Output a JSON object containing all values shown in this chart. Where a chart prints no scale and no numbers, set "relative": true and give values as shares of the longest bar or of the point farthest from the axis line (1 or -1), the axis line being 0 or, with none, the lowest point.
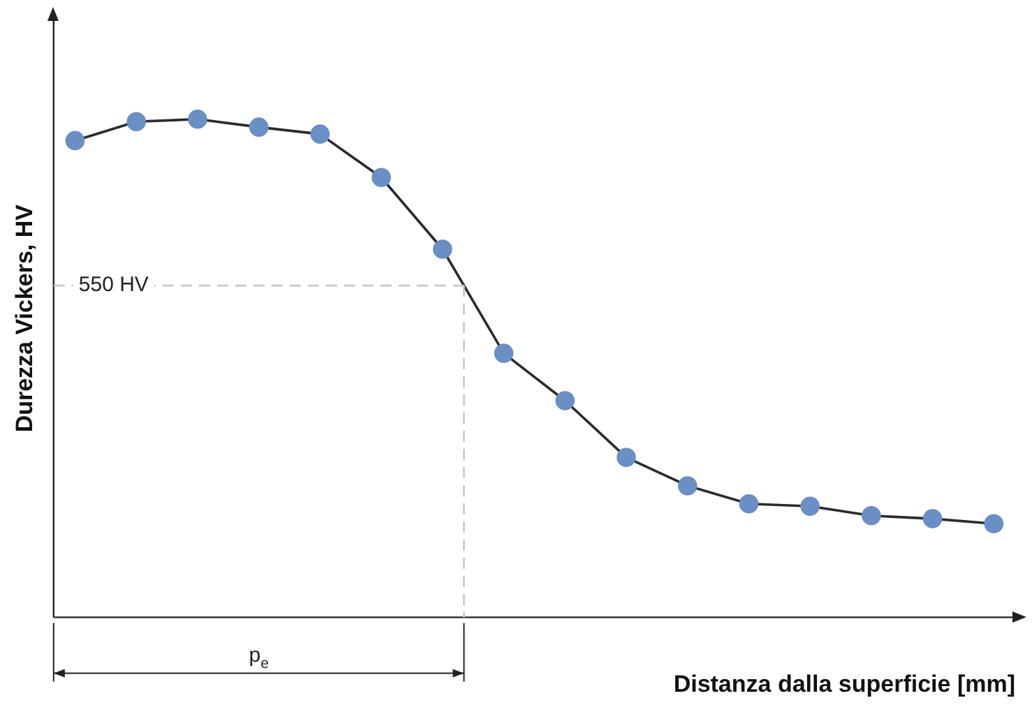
{
  "chart_data": {
    "type": "line",
    "relative": true,
    "xlabel": "Distanza dalla superficie [mm]",
    "ylabel": "Durezza Vickers, HV",
    "categories": [
      null,
      null,
      null,
      null,
      null,
      null,
      null,
      null,
      null,
      null,
      null,
      null,
      null,
      null,
      null,
      null
    ],
    "series": [
      {
        "color": "#2b2b2b",
        "values": [
          0.957,
          0.995,
          1,
          0.984,
          0.97,
          0.883,
          0.739,
          0.53,
          0.435,
          0.321,
          0.264,
          0.228,
          0.223,
          0.204,
          0.198,
          0.188
        ]
      }
    ],
    "marker": "circle",
    "line_style": "solid",
    "ref_lines": [
      {
        "axis": "y",
        "value": 0.666,
        "label": "550 HV",
        "color": "#c8c8c8",
        "line_style": "dashed"
      }
    ],
    "annotations": [
      "p$_{e}$"
    ],
    "grid": false,
    "legend": false
  }
}
